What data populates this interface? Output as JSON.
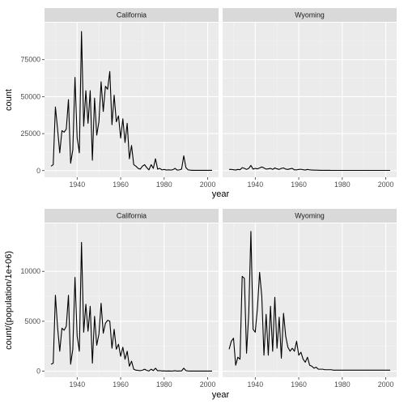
{
  "chart_data": [
    {
      "type": "line",
      "facets": [
        "California",
        "Wyoming"
      ],
      "xlabel": "year",
      "ylabel": "count",
      "xlim": [
        1925,
        2005
      ],
      "ylim": [
        -4500,
        100000
      ],
      "x_ticks": [
        1940,
        1960,
        1980,
        2000
      ],
      "y_ticks": [
        0,
        25000,
        50000,
        75000
      ],
      "y_tick_labels": [
        "0",
        "25000",
        "50000",
        "75000"
      ],
      "grid": true,
      "x": [
        1928,
        1929,
        1930,
        1931,
        1932,
        1933,
        1934,
        1935,
        1936,
        1937,
        1938,
        1939,
        1940,
        1941,
        1942,
        1943,
        1944,
        1945,
        1946,
        1947,
        1948,
        1949,
        1950,
        1951,
        1952,
        1953,
        1954,
        1955,
        1956,
        1957,
        1958,
        1959,
        1960,
        1961,
        1962,
        1963,
        1964,
        1965,
        1966,
        1967,
        1968,
        1969,
        1970,
        1971,
        1972,
        1973,
        1974,
        1975,
        1976,
        1977,
        1978,
        1979,
        1980,
        1981,
        1982,
        1983,
        1984,
        1985,
        1986,
        1987,
        1988,
        1989,
        1990,
        1991,
        1992,
        1993,
        1994,
        1995,
        1996,
        1997,
        1998,
        1999,
        2000,
        2001,
        2002
      ],
      "series": [
        {
          "values": [
            3000,
            4000,
            43000,
            28000,
            12000,
            27000,
            26000,
            28000,
            48000,
            5000,
            14000,
            63000,
            22000,
            12000,
            94000,
            30000,
            54000,
            32000,
            54000,
            7000,
            49000,
            24000,
            33000,
            60000,
            40000,
            57000,
            55000,
            67000,
            31000,
            51000,
            33000,
            37000,
            22000,
            35000,
            19000,
            32000,
            8000,
            17000,
            4000,
            3000,
            1500,
            1000,
            3000,
            4000,
            2000,
            500,
            4000,
            1500,
            8000,
            1000,
            1500,
            500,
            800,
            400,
            500,
            400,
            600,
            1500,
            300,
            500,
            1000,
            10000,
            2000,
            500,
            300,
            200,
            200,
            200,
            200,
            200,
            200,
            200,
            200,
            200,
            200
          ]
        },
        {
          "values": [
            800,
            800,
            600,
            400,
            800,
            600,
            2000,
            1500,
            800,
            1500,
            3500,
            1000,
            1500,
            1200,
            1800,
            2500,
            1800,
            1000,
            1200,
            1500,
            800,
            1800,
            1200,
            800,
            1500,
            1800,
            1000,
            800,
            1200,
            1500,
            500,
            500,
            800,
            900,
            600,
            400,
            800,
            500,
            400,
            300,
            300,
            250,
            200,
            200,
            200,
            200,
            200,
            150,
            150,
            150,
            150,
            150,
            150,
            150,
            150,
            150,
            150,
            150,
            150,
            150,
            150,
            150,
            150,
            150,
            150,
            150,
            150,
            150,
            150,
            150,
            150,
            150,
            150,
            150,
            150
          ]
        }
      ]
    },
    {
      "type": "line",
      "facets": [
        "California",
        "Wyoming"
      ],
      "xlabel": "year",
      "ylabel": "count/(population/1e+06)",
      "xlim": [
        1925,
        2005
      ],
      "ylim": [
        -600,
        14800
      ],
      "x_ticks": [
        1940,
        1960,
        1980,
        2000
      ],
      "y_ticks": [
        0,
        5000,
        10000
      ],
      "y_tick_labels": [
        "0",
        "5000",
        "10000"
      ],
      "grid": true,
      "x": [
        1928,
        1929,
        1930,
        1931,
        1932,
        1933,
        1934,
        1935,
        1936,
        1937,
        1938,
        1939,
        1940,
        1941,
        1942,
        1943,
        1944,
        1945,
        1946,
        1947,
        1948,
        1949,
        1950,
        1951,
        1952,
        1953,
        1954,
        1955,
        1956,
        1957,
        1958,
        1959,
        1960,
        1961,
        1962,
        1963,
        1964,
        1965,
        1966,
        1967,
        1968,
        1969,
        1970,
        1971,
        1972,
        1973,
        1974,
        1975,
        1976,
        1977,
        1978,
        1979,
        1980,
        1981,
        1982,
        1983,
        1984,
        1985,
        1986,
        1987,
        1988,
        1989,
        1990,
        1991,
        1992,
        1993,
        1994,
        1995,
        1996,
        1997,
        1998,
        1999,
        2000,
        2001,
        2002
      ],
      "series": [
        {
          "values": [
            700,
            800,
            7600,
            4400,
            2000,
            4300,
            4100,
            4500,
            7600,
            700,
            2200,
            9400,
            3500,
            2000,
            12900,
            3900,
            6700,
            4000,
            6500,
            800,
            5500,
            2600,
            3700,
            6800,
            3800,
            4800,
            5100,
            5000,
            2300,
            4200,
            2200,
            2700,
            1500,
            2400,
            1200,
            2000,
            500,
            1000,
            200,
            100,
            80,
            50,
            100,
            200,
            80,
            20,
            200,
            60,
            300,
            40,
            60,
            20,
            30,
            15,
            20,
            15,
            20,
            50,
            10,
            20,
            30,
            300,
            60,
            20,
            10,
            10,
            10,
            10,
            10,
            10,
            10,
            10,
            10,
            10,
            10
          ]
        },
        {
          "values": [
            2200,
            3000,
            3300,
            600,
            1400,
            1200,
            9500,
            9300,
            1800,
            5700,
            14000,
            4200,
            3900,
            6300,
            9900,
            7500,
            1600,
            5700,
            1600,
            6500,
            2000,
            7400,
            2300,
            5400,
            1300,
            5800,
            3500,
            2400,
            2000,
            2300,
            2000,
            3000,
            1600,
            1900,
            1200,
            900,
            1400,
            600,
            500,
            300,
            400,
            200,
            200,
            200,
            150,
            150,
            150,
            150,
            100,
            100,
            100,
            100,
            100,
            100,
            100,
            100,
            100,
            100,
            100,
            100,
            100,
            100,
            100,
            100,
            100,
            100,
            100,
            100,
            100,
            100,
            100,
            100,
            100,
            100,
            100
          ]
        }
      ]
    }
  ]
}
